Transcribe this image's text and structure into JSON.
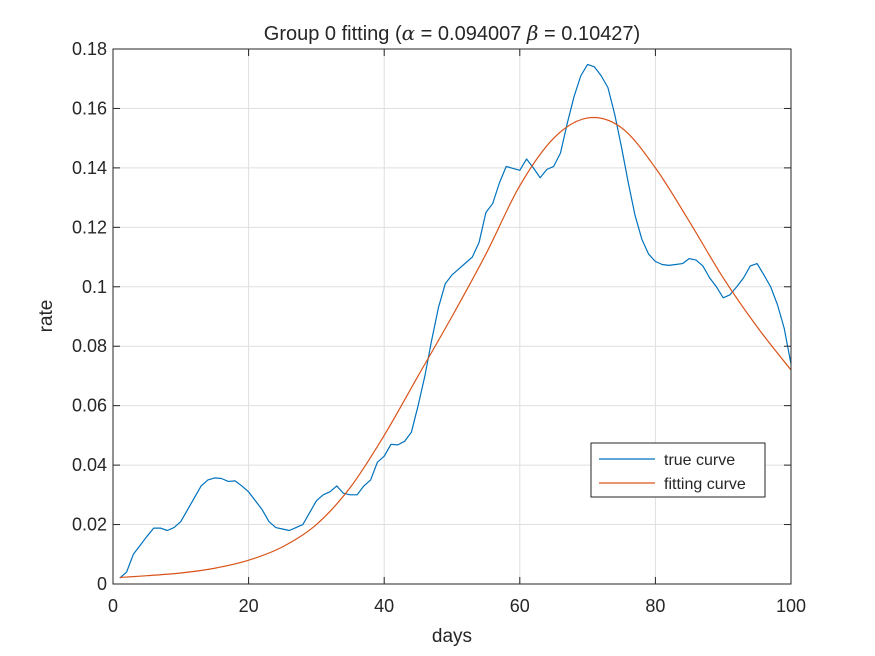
{
  "chart_data": {
    "type": "line",
    "title": {
      "prefix": "Group 0 fitting (",
      "alpha_symbol": "α",
      "alpha_text": " = 0.094007 ",
      "beta_symbol": "β",
      "beta_text": " = 0.10427)"
    },
    "xlabel": "days",
    "ylabel": "rate",
    "xlim": [
      0,
      100
    ],
    "ylim": [
      0,
      0.18
    ],
    "xticks": [
      0,
      20,
      40,
      60,
      80,
      100
    ],
    "xtick_labels": [
      "0",
      "20",
      "40",
      "60",
      "80",
      "100"
    ],
    "yticks": [
      0,
      0.02,
      0.04,
      0.06,
      0.08,
      0.1,
      0.12,
      0.14,
      0.16,
      0.18
    ],
    "ytick_labels": [
      "0",
      "0.02",
      "0.04",
      "0.06",
      "0.08",
      "0.1",
      "0.12",
      "0.14",
      "0.16",
      "0.18"
    ],
    "grid": true,
    "legend_position": "lower-right",
    "series": [
      {
        "name": "true curve",
        "color": "#0072BD",
        "points": [
          [
            1,
            0.002
          ],
          [
            2,
            0.004
          ],
          [
            3,
            0.01
          ],
          [
            4,
            0.013
          ],
          [
            5,
            0.016
          ],
          [
            6,
            0.0188
          ],
          [
            7,
            0.0188
          ],
          [
            8,
            0.018
          ],
          [
            9,
            0.019
          ],
          [
            10,
            0.021
          ],
          [
            11,
            0.025
          ],
          [
            12,
            0.029
          ],
          [
            13,
            0.033
          ],
          [
            14,
            0.035
          ],
          [
            15,
            0.0357
          ],
          [
            16,
            0.0355
          ],
          [
            17,
            0.0345
          ],
          [
            18,
            0.0347
          ],
          [
            19,
            0.033
          ],
          [
            20,
            0.031
          ],
          [
            21,
            0.028
          ],
          [
            22,
            0.025
          ],
          [
            23,
            0.021
          ],
          [
            24,
            0.019
          ],
          [
            25,
            0.0185
          ],
          [
            26,
            0.018
          ],
          [
            27,
            0.019
          ],
          [
            28,
            0.02
          ],
          [
            29,
            0.024
          ],
          [
            30,
            0.028
          ],
          [
            31,
            0.03
          ],
          [
            32,
            0.031
          ],
          [
            33,
            0.033
          ],
          [
            34,
            0.0305
          ],
          [
            35,
            0.03
          ],
          [
            36,
            0.03
          ],
          [
            37,
            0.033
          ],
          [
            38,
            0.035
          ],
          [
            39,
            0.041
          ],
          [
            40,
            0.043
          ],
          [
            41,
            0.047
          ],
          [
            42,
            0.0468
          ],
          [
            43,
            0.048
          ],
          [
            44,
            0.051
          ],
          [
            45,
            0.06
          ],
          [
            46,
            0.07
          ],
          [
            47,
            0.082
          ],
          [
            48,
            0.093
          ],
          [
            49,
            0.101
          ],
          [
            50,
            0.104
          ],
          [
            51,
            0.106
          ],
          [
            52,
            0.108
          ],
          [
            53,
            0.11
          ],
          [
            54,
            0.115
          ],
          [
            55,
            0.125
          ],
          [
            56,
            0.128
          ],
          [
            57,
            0.135
          ],
          [
            58,
            0.1405
          ],
          [
            59,
            0.1398
          ],
          [
            60,
            0.1392
          ],
          [
            61,
            0.143
          ],
          [
            62,
            0.14
          ],
          [
            63,
            0.1367
          ],
          [
            64,
            0.1395
          ],
          [
            65,
            0.1405
          ],
          [
            66,
            0.145
          ],
          [
            67,
            0.155
          ],
          [
            68,
            0.164
          ],
          [
            69,
            0.171
          ],
          [
            70,
            0.1748
          ],
          [
            71,
            0.174
          ],
          [
            72,
            0.171
          ],
          [
            73,
            0.167
          ],
          [
            74,
            0.158
          ],
          [
            75,
            0.147
          ],
          [
            76,
            0.135
          ],
          [
            77,
            0.124
          ],
          [
            78,
            0.116
          ],
          [
            79,
            0.111
          ],
          [
            80,
            0.1085
          ],
          [
            81,
            0.1075
          ],
          [
            82,
            0.1072
          ],
          [
            83,
            0.1075
          ],
          [
            84,
            0.1078
          ],
          [
            85,
            0.1095
          ],
          [
            86,
            0.109
          ],
          [
            87,
            0.107
          ],
          [
            88,
            0.103
          ],
          [
            89,
            0.1
          ],
          [
            90,
            0.0963
          ],
          [
            91,
            0.0973
          ],
          [
            92,
            0.1
          ],
          [
            93,
            0.103
          ],
          [
            94,
            0.107
          ],
          [
            95,
            0.1078
          ],
          [
            96,
            0.104
          ],
          [
            97,
            0.1
          ],
          [
            98,
            0.094
          ],
          [
            99,
            0.086
          ],
          [
            100,
            0.074
          ]
        ]
      },
      {
        "name": "fitting curve",
        "color": "#D95319",
        "points": [
          [
            1,
            0.0022
          ],
          [
            5,
            0.0028
          ],
          [
            10,
            0.0037
          ],
          [
            15,
            0.0053
          ],
          [
            20,
            0.008
          ],
          [
            25,
            0.0125
          ],
          [
            30,
            0.02
          ],
          [
            35,
            0.0325
          ],
          [
            40,
            0.05
          ],
          [
            45,
            0.07
          ],
          [
            50,
            0.09
          ],
          [
            55,
            0.111
          ],
          [
            60,
            0.134
          ],
          [
            65,
            0.15
          ],
          [
            70,
            0.1568
          ],
          [
            75,
            0.1535
          ],
          [
            80,
            0.14
          ],
          [
            85,
            0.122
          ],
          [
            90,
            0.103
          ],
          [
            95,
            0.0865
          ],
          [
            100,
            0.072
          ]
        ]
      }
    ]
  }
}
